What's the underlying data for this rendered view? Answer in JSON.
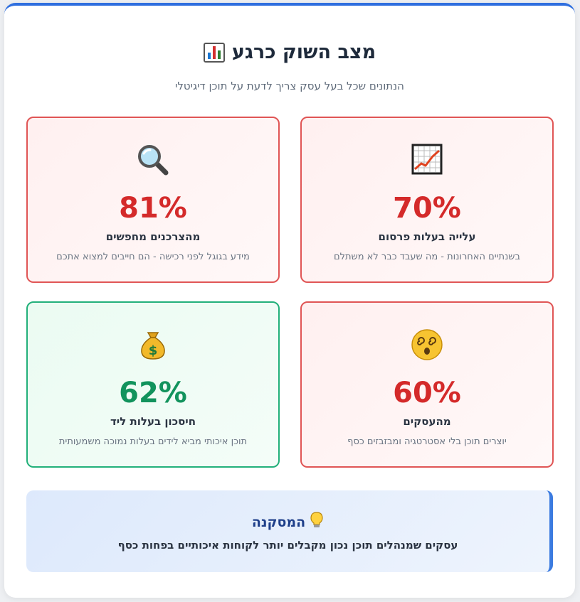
{
  "header": {
    "title": "מצב השוק כרגע",
    "title_icon": "bar-chart-icon",
    "subtitle": "הנתונים שכל בעל עסק צריך לדעת על תוכן דיגיטלי"
  },
  "stats": [
    {
      "icon": "chart-increasing-icon",
      "value": "70%",
      "label": "עלייה בעלות פרסום",
      "description": "בשנתיים האחרונות - מה שעבד כבר לא משתלם",
      "tone": "negative"
    },
    {
      "icon": "magnifying-glass-icon",
      "value": "81%",
      "label": "מהצרכנים מחפשים",
      "description": "מידע בגוגל לפני רכישה - הם חייבים למצוא אתכם",
      "tone": "negative"
    },
    {
      "icon": "dizzy-face-icon",
      "value": "60%",
      "label": "מהעסקים",
      "description": "יוצרים תוכן בלי אסטרטגיה ומבזבזים כסף",
      "tone": "negative"
    },
    {
      "icon": "money-bag-icon",
      "value": "62%",
      "label": "חיסכון בעלות ליד",
      "description": "תוכן איכותי מביא לידים בעלות נמוכה משמעותית",
      "tone": "positive"
    }
  ],
  "conclusion": {
    "icon": "light-bulb-icon",
    "title": "המסקנה",
    "text": "עסקים שמנהלים תוכן נכון מקבלים יותר לקוחות איכותיים בפחות כסף"
  },
  "colors": {
    "accent": "#2f6fdf",
    "negative": "#d42a2a",
    "positive": "#12935d"
  }
}
